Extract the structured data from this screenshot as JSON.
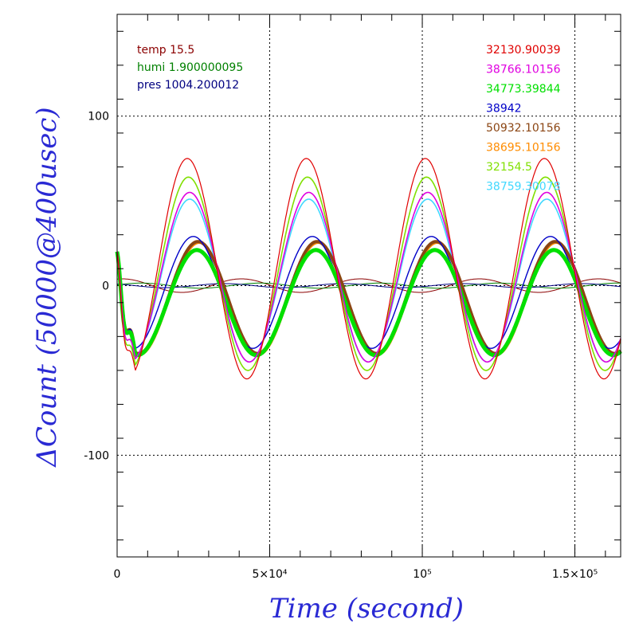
{
  "chart_data": {
    "type": "line",
    "xlabel": "Time (second)",
    "ylabel": "ΔCount (50000@400usec)",
    "xlim": [
      0,
      165000
    ],
    "ylim": [
      -160,
      160
    ],
    "grid": true,
    "x_ticks": [
      {
        "value": 0,
        "label": "0"
      },
      {
        "value": 50000,
        "label": "5×10⁴"
      },
      {
        "value": 100000,
        "label": "10⁵"
      },
      {
        "value": 150000,
        "label": "1.5×10⁵"
      }
    ],
    "y_ticks": [
      {
        "value": 100,
        "label": "100"
      },
      {
        "value": 0,
        "label": "0"
      },
      {
        "value": -100,
        "label": "-100"
      }
    ],
    "env_legend": [
      {
        "label": "temp 15.5",
        "color": "#8b0000"
      },
      {
        "label": "humi 1.900000095",
        "color": "#008000"
      },
      {
        "label": "pres 1004.200012",
        "color": "#000080"
      }
    ],
    "legend_position": "top-right",
    "series": [
      {
        "name": "32130.90039",
        "color": "#e00000",
        "amplitude": 65,
        "phase_lag": 0.0,
        "offset": 10,
        "width": 1.2
      },
      {
        "name": "38766.10156",
        "color": "#e000e0",
        "amplitude": 50,
        "phase_lag": 0.02,
        "offset": 5,
        "width": 1.6
      },
      {
        "name": "34773.39844",
        "color": "#00e000",
        "amplitude": 31,
        "phase_lag": 0.08,
        "offset": -10,
        "width": 5
      },
      {
        "name": "38942",
        "color": "#0000c8",
        "amplitude": 33,
        "phase_lag": 0.05,
        "offset": -4,
        "width": 1.4
      },
      {
        "name": "50932.10156",
        "color": "#8b4513",
        "amplitude": 33,
        "phase_lag": 0.09,
        "offset": -7,
        "width": 4
      },
      {
        "name": "38695.10156",
        "color": "#ff8c00",
        "amplitude": 33,
        "phase_lag": 0.1,
        "offset": -8,
        "width": 1.6
      },
      {
        "name": "32154.5",
        "color": "#80e000",
        "amplitude": 57,
        "phase_lag": 0.01,
        "offset": 7,
        "width": 1.6
      },
      {
        "name": "38759.30078",
        "color": "#40d8ff",
        "amplitude": 48,
        "phase_lag": 0.02,
        "offset": 3,
        "width": 1.6
      }
    ],
    "env_series": [
      {
        "name": "temp",
        "color": "#8b0000",
        "amplitude": 4,
        "phase": 1.3,
        "offset": 0
      },
      {
        "name": "humi",
        "color": "#008000",
        "amplitude": 1.5,
        "phase": 0.3,
        "offset": 0
      },
      {
        "name": "pres",
        "color": "#000080",
        "amplitude": 1.2,
        "phase": 2.2,
        "offset": 0
      }
    ],
    "period_seconds": 39000
  }
}
